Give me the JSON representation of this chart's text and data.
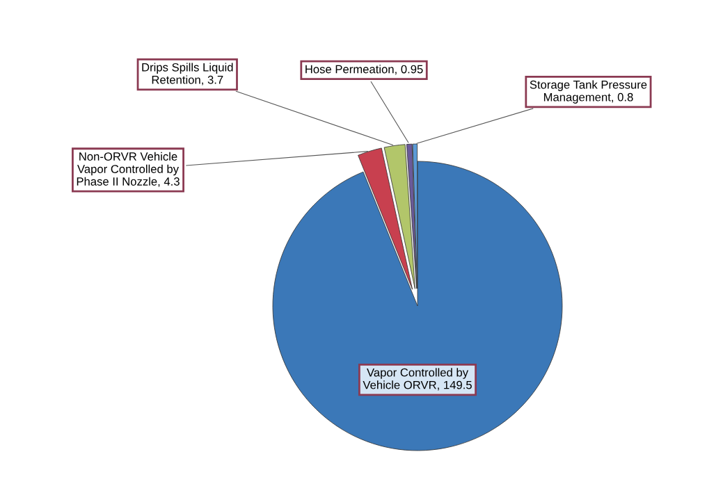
{
  "chart_data": {
    "type": "pie",
    "categories": [
      "Vapor Controlled by\nVehicle ORVR",
      "Non-ORVR Vehicle\nVapor Controlled by\nPhase II Nozzle",
      "Drips Spills Liquid\nRetention",
      "Hose Permeation",
      "Storage Tank Pressure\nManagement"
    ],
    "values": [
      149.5,
      4.3,
      3.7,
      0.95,
      0.8
    ],
    "value_labels": [
      "149.5",
      "4.3",
      "3.7",
      "0.95",
      "0.8"
    ],
    "colors": [
      "#3b78b8",
      "#c8404f",
      "#b2c66a",
      "#6a5a9a",
      "#5b9ad6"
    ]
  }
}
